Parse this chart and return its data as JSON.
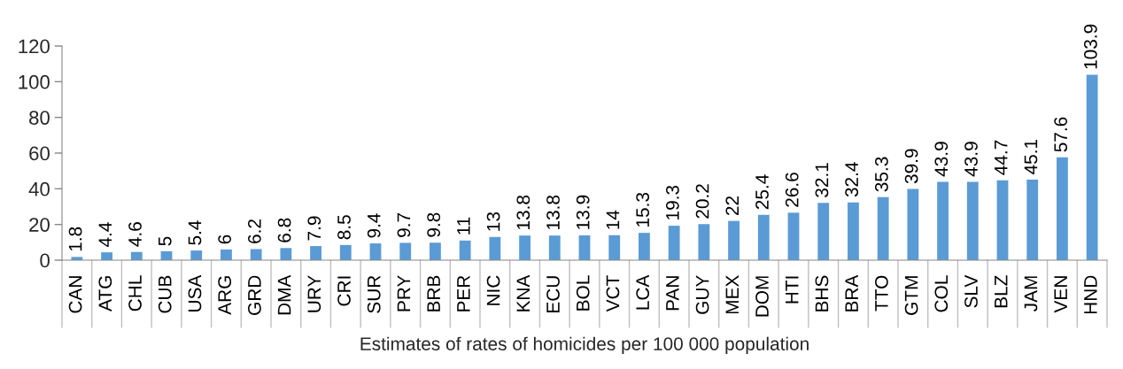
{
  "chart_data": {
    "type": "bar",
    "xlabel": "Estimates of rates of homicides per 100 000 population",
    "categories": [
      "CAN",
      "ATG",
      "CHL",
      "CUB",
      "USA",
      "ARG",
      "GRD",
      "DMA",
      "URY",
      "CRI",
      "SUR",
      "PRY",
      "BRB",
      "PER",
      "NIC",
      "KNA",
      "ECU",
      "BOL",
      "VCT",
      "LCA",
      "PAN",
      "GUY",
      "MEX",
      "DOM",
      "HTI",
      "BHS",
      "BRA",
      "TTO",
      "GTM",
      "COL",
      "SLV",
      "BLZ",
      "JAM",
      "VEN",
      "HND"
    ],
    "values": [
      1.8,
      4.4,
      4.6,
      5,
      5.4,
      6,
      6.2,
      6.8,
      7.9,
      8.5,
      9.4,
      9.7,
      9.8,
      11,
      13,
      13.8,
      13.8,
      13.9,
      14,
      15.3,
      19.3,
      20.2,
      22,
      25.4,
      26.6,
      32.1,
      32.4,
      35.3,
      39.9,
      43.9,
      43.9,
      44.7,
      45.1,
      57.6,
      103.9
    ],
    "color": "#5b9bd5",
    "ylim": [
      0,
      120
    ],
    "yticks": [
      0,
      20,
      40,
      60,
      80,
      100,
      120
    ],
    "data_labels": true
  }
}
